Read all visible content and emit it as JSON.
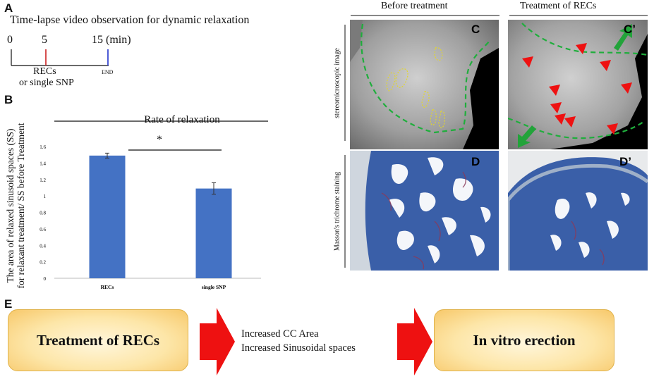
{
  "panel_a": {
    "letter": "A",
    "title": "Time-lapse video observation for dynamic relaxation",
    "ticks": [
      "0",
      "5",
      "15 (min)"
    ],
    "label_recs": "RECs",
    "label_snp": "or single SNP",
    "label_end": "END",
    "colors": {
      "start_tick": "#cc2222",
      "end_tick": "#2233cc"
    }
  },
  "panel_b": {
    "letter": "B",
    "subtitle": "Rate of relaxation",
    "significance": "*"
  },
  "chart_data": {
    "type": "bar",
    "title": "Rate of relaxation",
    "categories": [
      "RECs",
      "single SNP"
    ],
    "values": [
      1.49,
      1.09
    ],
    "error": [
      0.03,
      0.07
    ],
    "ylabel_line1": "The area of relaxed sinusoid spaces (SS)",
    "ylabel_line2": "for relaxant treatment/ SS before Treatment",
    "ylim": [
      0,
      1.6
    ],
    "yticks": [
      "0",
      "0.2",
      "0.4",
      "0.6",
      "0.8",
      "1",
      "1.2",
      "1.4",
      "1.6"
    ],
    "bar_color": "#4472c4",
    "grid": false
  },
  "panel_cd": {
    "header_before": "Before treatment",
    "header_after": "Treatment of RECs",
    "side_top": "stereomicroscopic image",
    "side_bottom": "Masson's trichrome staining",
    "letters": [
      "C",
      "C’",
      "D",
      "D’"
    ]
  },
  "panel_e": {
    "letter": "E",
    "box1": "Treatment of RECs",
    "middle_line1": "Increased CC Area",
    "middle_line2": "Increased Sinusoidal spaces",
    "box2": "In vitro erection",
    "arrow_color": "#ee1111"
  }
}
